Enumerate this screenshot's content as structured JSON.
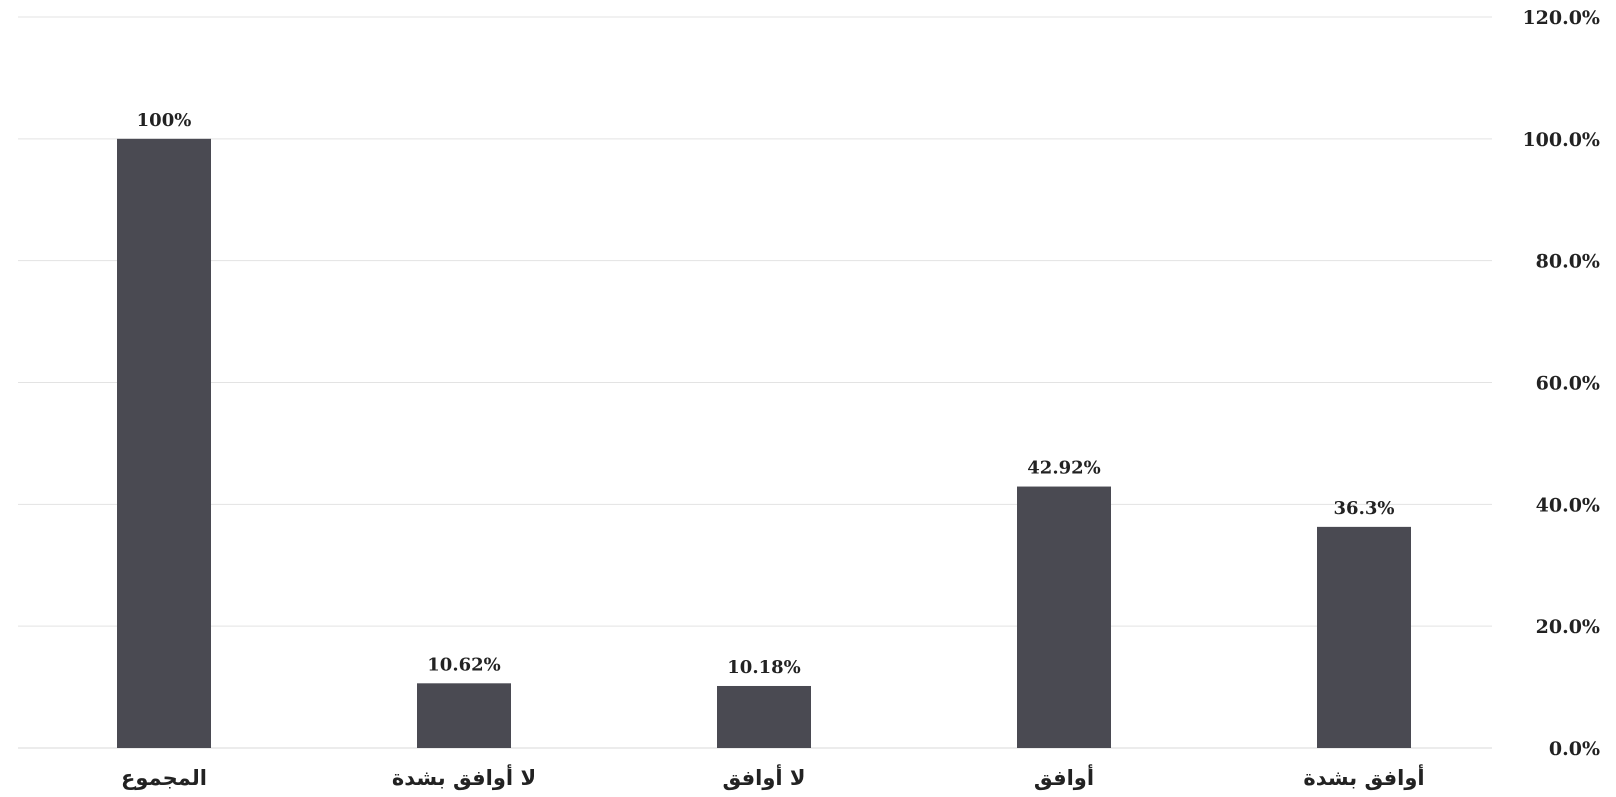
{
  "chart_data": {
    "type": "bar",
    "categories": [
      "المجموع",
      "لا أوافق بشدة",
      "لا أوافق",
      "أوافق",
      "أوافق بشدة"
    ],
    "values": [
      100,
      10.62,
      10.18,
      42.92,
      36.3
    ],
    "data_labels": [
      "100%",
      "10.62%",
      "10.18%",
      "42.92%",
      "36.3%"
    ],
    "ylim": [
      0,
      120
    ],
    "yticks": [
      0,
      20,
      40,
      60,
      80,
      100,
      120
    ],
    "ytick_labels": [
      "0.0%",
      "20.0%",
      "40.0%",
      "60.0%",
      "80.0%",
      "100.0%",
      "120.0%"
    ],
    "y_axis_side": "right",
    "grid": true,
    "bar_color": "#4a4a52",
    "title": "",
    "xlabel": "",
    "ylabel": ""
  }
}
